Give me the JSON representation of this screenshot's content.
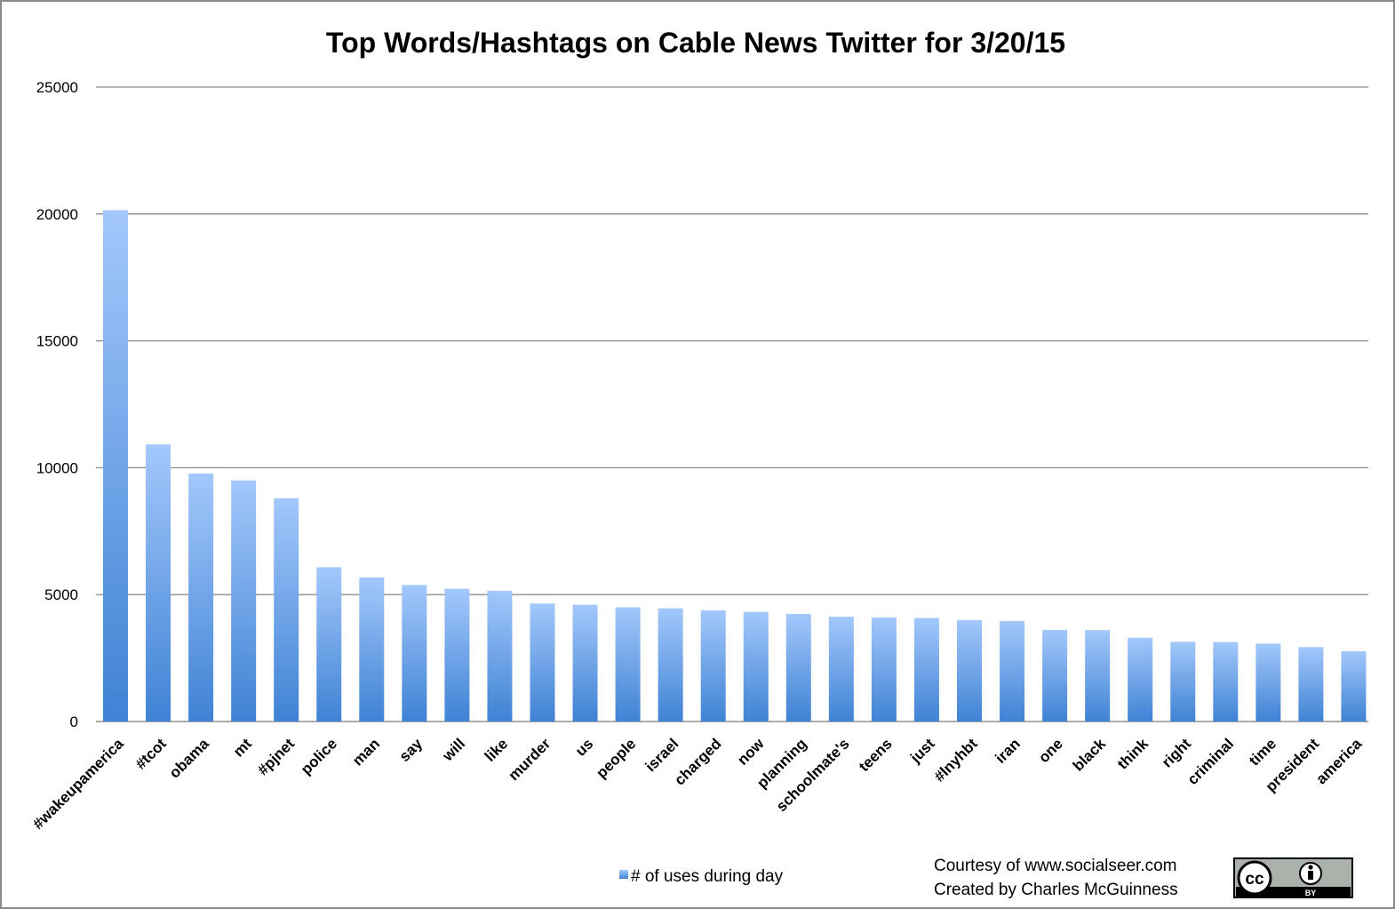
{
  "chart_data": {
    "type": "bar",
    "title": "Top Words/Hashtags on Cable News Twitter for 3/20/15",
    "xlabel": "",
    "ylabel": "",
    "ylim": [
      0,
      25000
    ],
    "yticks": [
      0,
      5000,
      10000,
      15000,
      20000,
      25000
    ],
    "grid": true,
    "legend_position": "bottom",
    "categories": [
      "#wakeupamerica",
      "#tcot",
      "obama",
      "mt",
      "#pjnet",
      "police",
      "man",
      "say",
      "will",
      "like",
      "murder",
      "us",
      "people",
      "israel",
      "charged",
      "now",
      "planning",
      "schoolmate's",
      "teens",
      "just",
      "#lnyhbt",
      "iran",
      "one",
      "black",
      "think",
      "right",
      "criminal",
      "time",
      "president",
      "america"
    ],
    "series": [
      {
        "name": "# of uses during day",
        "values": [
          20150,
          10920,
          9770,
          9500,
          8800,
          6080,
          5680,
          5380,
          5230,
          5150,
          4650,
          4600,
          4500,
          4460,
          4380,
          4320,
          4240,
          4130,
          4100,
          4080,
          4000,
          3960,
          3610,
          3600,
          3300,
          3140,
          3130,
          3070,
          2930,
          2770
        ]
      }
    ],
    "colors": {
      "bar_top": "#a3c8fb",
      "bar_bottom": "#3f82d4",
      "grid": "#8c8c8c",
      "axis": "#7a7a7a"
    }
  },
  "credits": {
    "line1": "Courtesy of www.socialseer.com",
    "line2": "Created by Charles McGuinness"
  },
  "license_badge": {
    "icon": "creative-commons-by-icon",
    "cc_text": "cc",
    "by_text": "BY"
  }
}
